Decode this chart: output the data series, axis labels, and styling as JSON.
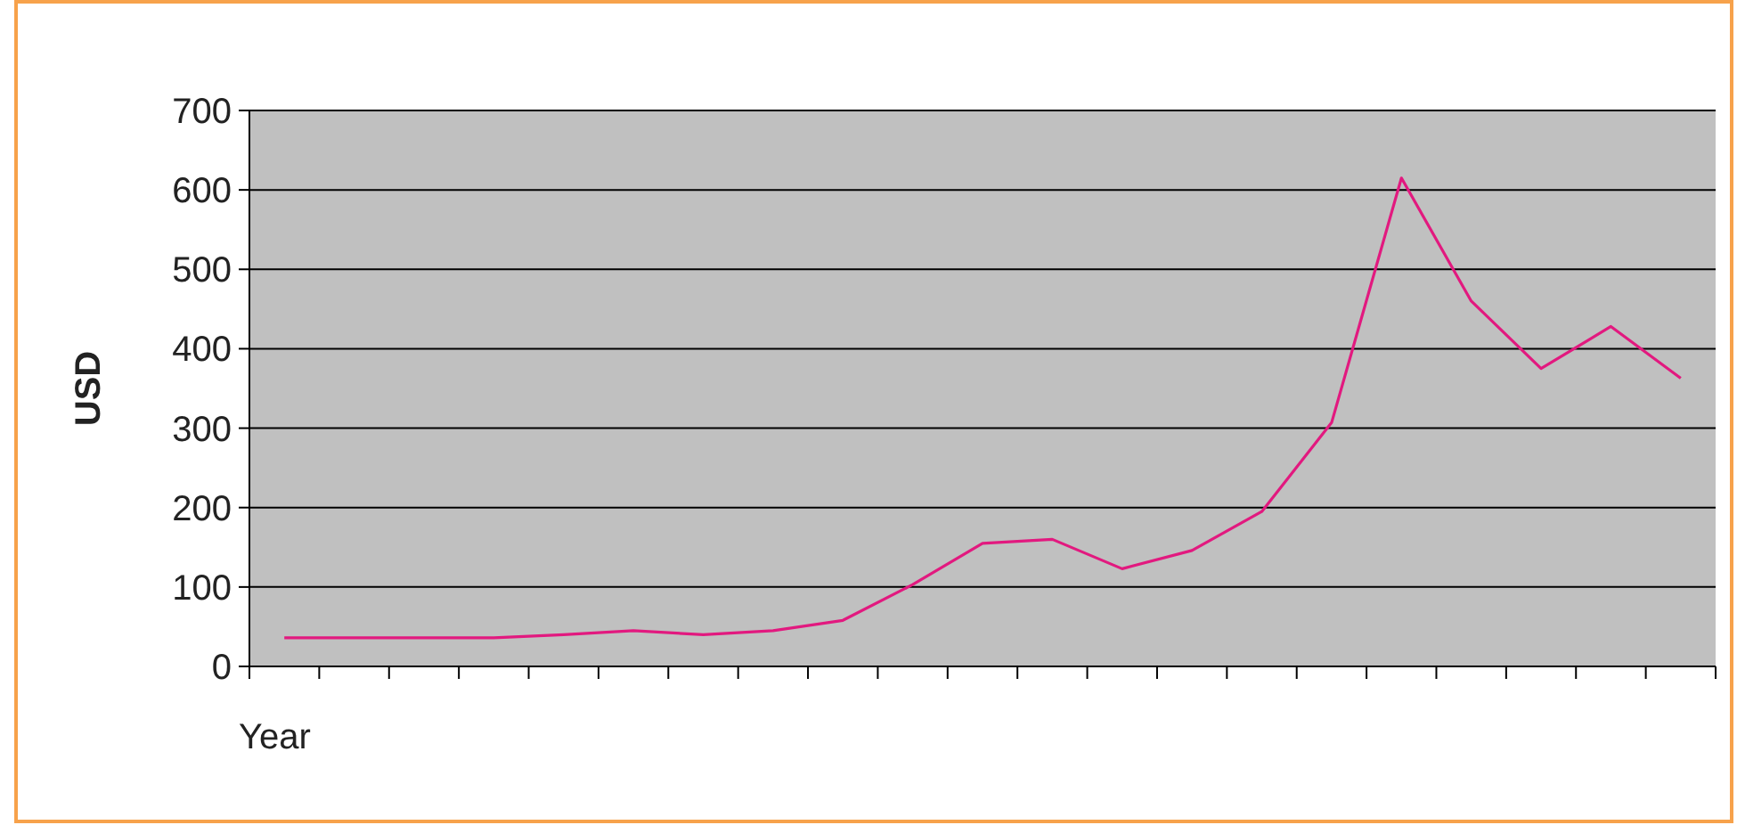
{
  "chart_data": {
    "type": "line",
    "ylabel": "USD",
    "xlabel": "Year",
    "categories": [
      null,
      null,
      null,
      null,
      null,
      null,
      null,
      null,
      null,
      null,
      null,
      null,
      null,
      null,
      null,
      null,
      null,
      null,
      null,
      null,
      null
    ],
    "series": [
      {
        "color": "#e2197f",
        "values": [
          36,
          36,
          36,
          36,
          40,
          45,
          40,
          45,
          58,
          103,
          155,
          160,
          123,
          146,
          195,
          307,
          615,
          460,
          375,
          428,
          363
        ]
      }
    ],
    "ylim": [
      0,
      700
    ],
    "yticks": [
      0,
      100,
      200,
      300,
      400,
      500,
      600,
      700
    ],
    "grid": "y",
    "marker": "none",
    "line_style": "solid"
  }
}
